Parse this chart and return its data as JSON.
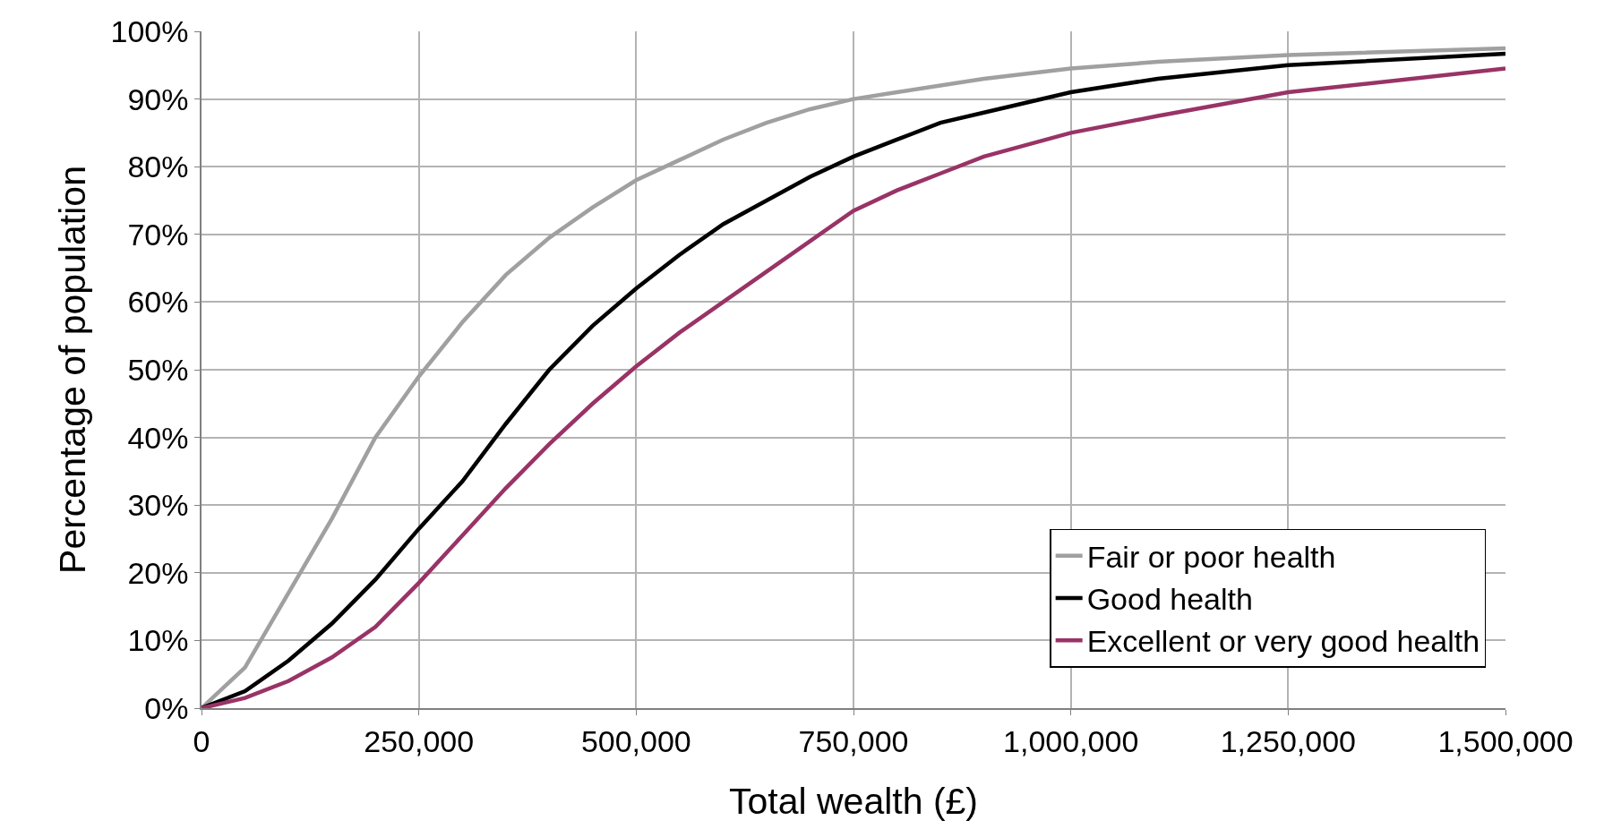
{
  "chart_data": {
    "type": "line",
    "xlabel": "Total wealth (£)",
    "ylabel": "Percentage of population",
    "x": [
      0,
      50000,
      100000,
      150000,
      200000,
      250000,
      300000,
      350000,
      400000,
      450000,
      500000,
      550000,
      600000,
      650000,
      700000,
      750000,
      800000,
      850000,
      900000,
      1000000,
      1100000,
      1250000,
      1500000
    ],
    "series": [
      {
        "name": "Fair or poor health",
        "color": "#a0a0a0",
        "values": [
          0,
          6,
          17,
          28,
          40,
          49,
          57,
          64,
          69.5,
          74,
          78,
          81,
          84,
          86.5,
          88.5,
          90,
          91,
          92,
          93,
          94.5,
          95.5,
          96.5,
          97.5
        ]
      },
      {
        "name": "Good health",
        "color": "#000000",
        "values": [
          0,
          2.5,
          7,
          12.5,
          19,
          26.5,
          33.5,
          42,
          50,
          56.5,
          62,
          67,
          71.5,
          75,
          78.5,
          81.5,
          84,
          86.5,
          88,
          91,
          93,
          95,
          96.7
        ]
      },
      {
        "name": "Excellent or very good health",
        "color": "#993366",
        "values": [
          0,
          1.5,
          4,
          7.5,
          12,
          18.5,
          25.5,
          32.5,
          39,
          45,
          50.5,
          55.5,
          60,
          64.5,
          69,
          73.5,
          76.5,
          79,
          81.5,
          85,
          87.5,
          91,
          94.5
        ]
      }
    ],
    "xlim": [
      0,
      1500000
    ],
    "xticks": [
      {
        "value": 0,
        "label": "0"
      },
      {
        "value": 250000,
        "label": "250,000"
      },
      {
        "value": 500000,
        "label": "500,000"
      },
      {
        "value": 750000,
        "label": "750,000"
      },
      {
        "value": 1000000,
        "label": "1,000,000"
      },
      {
        "value": 1250000,
        "label": "1,250,000"
      },
      {
        "value": 1500000,
        "label": "1,500,000"
      }
    ],
    "ylim": [
      0,
      100
    ],
    "yticks": [
      {
        "value": 0,
        "label": "0%"
      },
      {
        "value": 10,
        "label": "10%"
      },
      {
        "value": 20,
        "label": "20%"
      },
      {
        "value": 30,
        "label": "30%"
      },
      {
        "value": 40,
        "label": "40%"
      },
      {
        "value": 50,
        "label": "50%"
      },
      {
        "value": 60,
        "label": "60%"
      },
      {
        "value": 70,
        "label": "70%"
      },
      {
        "value": 80,
        "label": "80%"
      },
      {
        "value": 90,
        "label": "90%"
      },
      {
        "value": 100,
        "label": "100%"
      }
    ],
    "grid": true,
    "legend": "bottom right",
    "line_style": "solid",
    "marker": "none"
  }
}
